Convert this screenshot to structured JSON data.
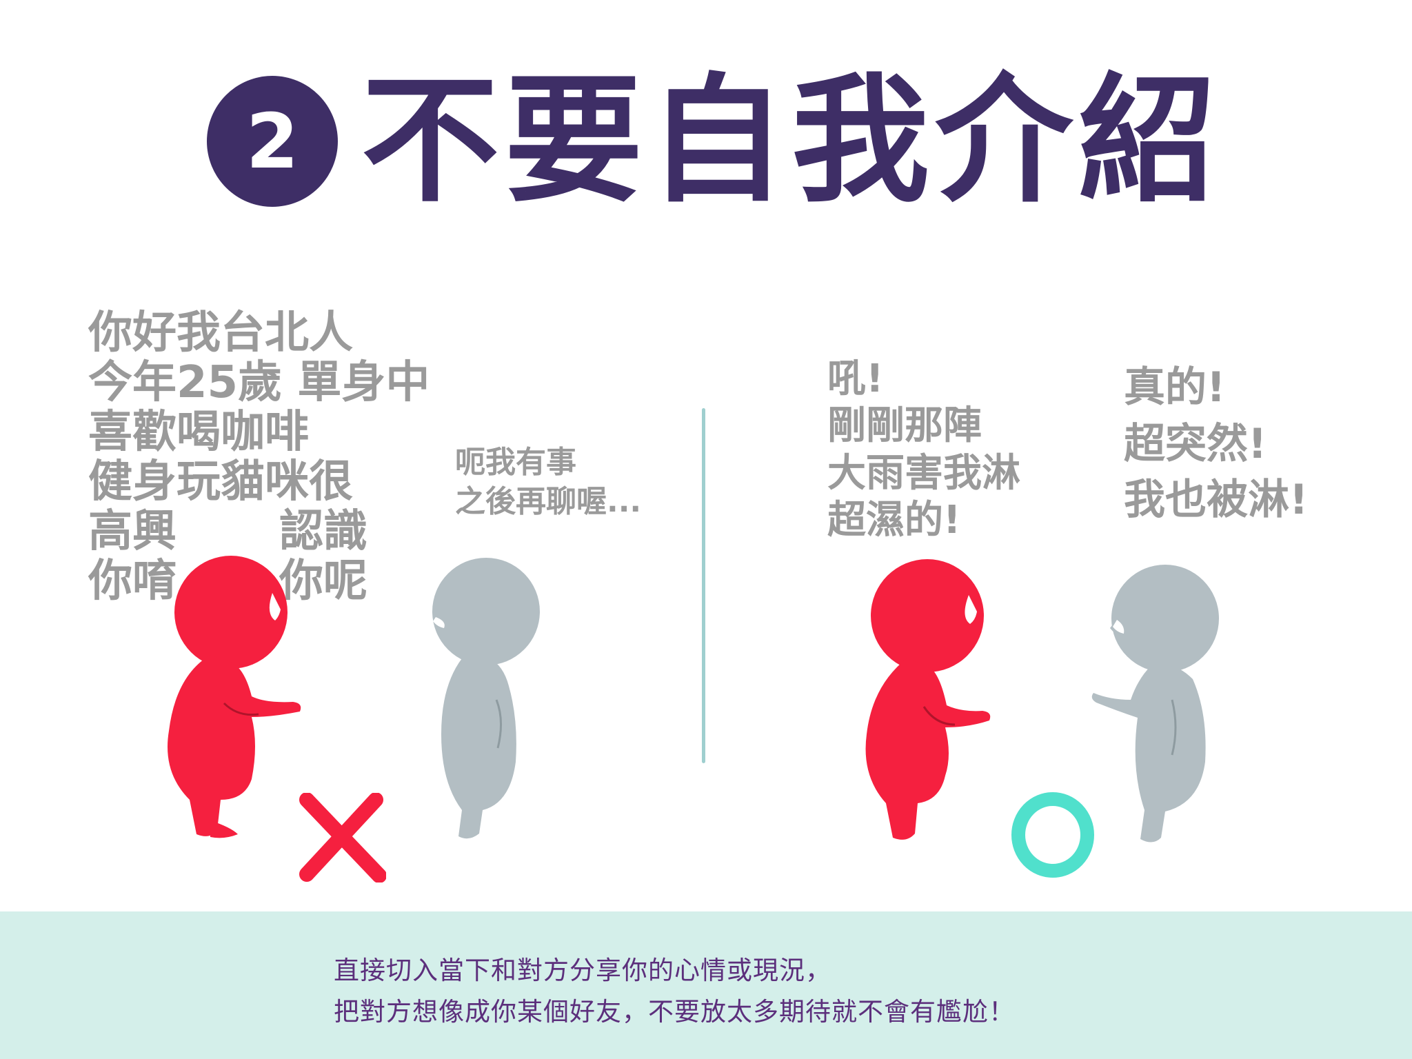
{
  "title": {
    "number": "2",
    "text": "不要自我介紹"
  },
  "colors": {
    "title": "#3e2e66",
    "red_figure": "#f5203f",
    "gray_figure": "#b3bec3",
    "wrong_mark": "#f5203f",
    "right_mark": "#50e0cc",
    "footer_bg": "#d4efea",
    "footer_text": "#5c2f7c"
  },
  "left_panel": {
    "speech_lines": [
      "你好我台北人",
      "今年25歲 單身中",
      "喜歡喝咖啡",
      "健身玩貓咪很"
    ],
    "speech_row5_left": "高興",
    "speech_row5_right": "認識",
    "speech_row6_left": "你唷",
    "speech_row6_right": "你呢",
    "reply_lines": [
      "呃我有事",
      "之後再聊喔..."
    ],
    "mark": "cross"
  },
  "right_panel": {
    "speech_red_lines": [
      "吼!",
      "剛剛那陣",
      "大雨害我淋",
      "超濕的!"
    ],
    "speech_gray_lines": [
      "真的!",
      "超突然!",
      "我也被淋!"
    ],
    "mark": "circle"
  },
  "footer": {
    "line1": "直接切入當下和對方分享你的心情或現況，",
    "line2": "把對方想像成你某個好友，不要放太多期待就不會有尷尬！"
  }
}
